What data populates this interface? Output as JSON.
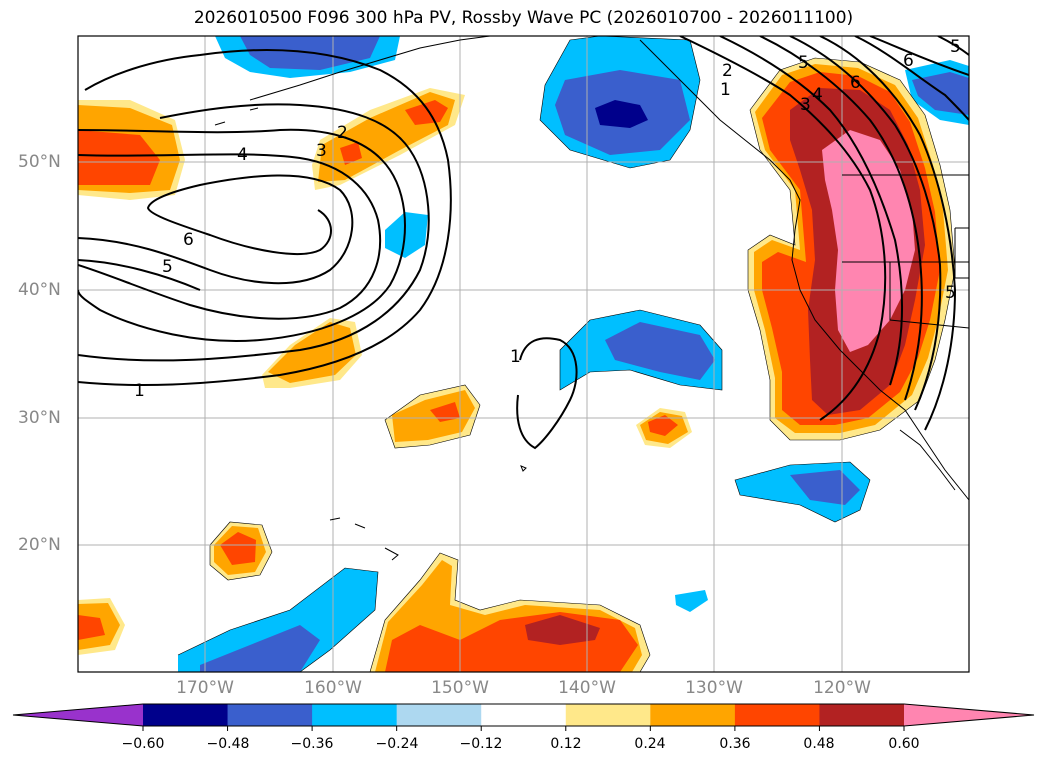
{
  "title": "2026010500 F096 300 hPa PV, Rossby Wave PC (2026010700 - 2026011100)",
  "lat_labels": [
    "50°N",
    "40°N",
    "30°N",
    "20°N"
  ],
  "lon_labels": [
    "170°W",
    "160°W",
    "150°W",
    "140°W",
    "130°W",
    "120°W"
  ],
  "colorbar": {
    "ticks": [
      "−0.60",
      "−0.48",
      "−0.36",
      "−0.24",
      "−0.12",
      "0.12",
      "0.24",
      "0.36",
      "0.48",
      "0.60"
    ],
    "colors": [
      "#9932CC",
      "#00008B",
      "#3A5FCD",
      "#00BFFF",
      "#ADD8F0",
      "#FFFFFF",
      "#FFE88A",
      "#FFA500",
      "#FF4500",
      "#B22222",
      "#FF85B0"
    ]
  },
  "contour_labels": [
    "1",
    "2",
    "3",
    "4",
    "5",
    "6",
    "1",
    "2",
    "3",
    "4",
    "5",
    "6",
    "5",
    "1",
    "5",
    "6"
  ]
}
